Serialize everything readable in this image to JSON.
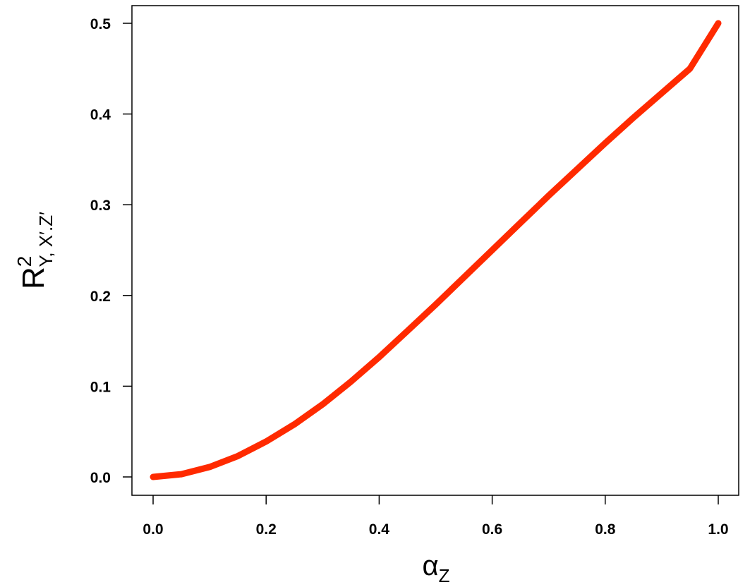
{
  "chart_data": {
    "type": "line",
    "xlim": [
      0.0,
      1.0
    ],
    "ylim": [
      0.0,
      0.5
    ],
    "x_ticks": [
      "0.0",
      "0.2",
      "0.4",
      "0.6",
      "0.8",
      "1.0"
    ],
    "y_ticks": [
      "0.0",
      "0.1",
      "0.2",
      "0.3",
      "0.4",
      "0.5"
    ],
    "xlabel": {
      "main": "α",
      "sub": "Z"
    },
    "ylabel": {
      "main": "R",
      "sup": "2",
      "sub": "Y, X′.Z′"
    },
    "grid": false,
    "series": [
      {
        "color": "#ff2a00",
        "x": [
          0.0,
          0.05,
          0.1,
          0.15,
          0.2,
          0.25,
          0.3,
          0.35,
          0.4,
          0.45,
          0.5,
          0.55,
          0.6,
          0.65,
          0.7,
          0.75,
          0.8,
          0.85,
          0.9,
          0.95,
          1.0
        ],
        "y": [
          0.0,
          0.003,
          0.011,
          0.023,
          0.039,
          0.058,
          0.08,
          0.105,
          0.132,
          0.161,
          0.19,
          0.22,
          0.25,
          0.28,
          0.31,
          0.339,
          0.368,
          0.396,
          0.423,
          0.45,
          0.5
        ]
      }
    ]
  }
}
